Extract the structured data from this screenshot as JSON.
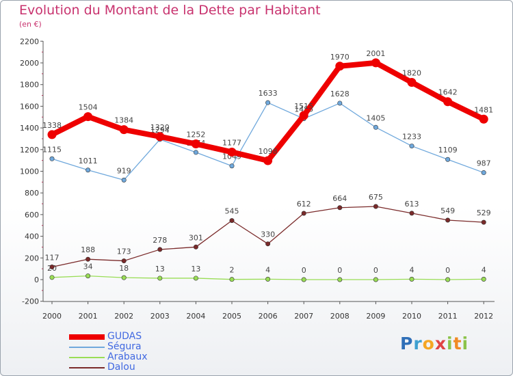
{
  "title": "Evolution du Montant de la Dette par Habitant",
  "unit": "(en €)",
  "logo_text": "Proxiti",
  "chart_data": {
    "type": "line",
    "title": "Evolution du Montant de la Dette par Habitant",
    "subtitle": "(en €)",
    "x": [
      "2000",
      "2001",
      "2002",
      "2003",
      "2004",
      "2005",
      "2006",
      "2007",
      "2008",
      "2009",
      "2010",
      "2011",
      "2012"
    ],
    "ylim": [
      -200,
      2200
    ],
    "yticks": [
      -200,
      0,
      200,
      400,
      600,
      800,
      1000,
      1200,
      1400,
      1600,
      1800,
      2000,
      2200
    ],
    "grid": false,
    "legend_position": "bottom-left",
    "series": [
      {
        "name": "GUDAS",
        "color": "#ee0000",
        "values": [
          1338,
          1504,
          1384,
          1320,
          1252,
          1177,
          1098,
          1515,
          1970,
          2001,
          1820,
          1642,
          1481
        ]
      },
      {
        "name": "Ségura",
        "color": "#6fa8dc",
        "values": [
          1115,
          1011,
          919,
          1294,
          1174,
          1049,
          1633,
          1485,
          1628,
          1405,
          1233,
          1109,
          987
        ]
      },
      {
        "name": "Arabaux",
        "color": "#99dd55",
        "values": [
          20,
          34,
          18,
          13,
          13,
          2,
          4,
          0,
          0,
          0,
          4,
          0,
          4
        ]
      },
      {
        "name": "Dalou",
        "color": "#7a2a2a",
        "values": [
          117,
          188,
          173,
          278,
          301,
          545,
          330,
          612,
          664,
          675,
          613,
          549,
          529
        ]
      }
    ]
  }
}
